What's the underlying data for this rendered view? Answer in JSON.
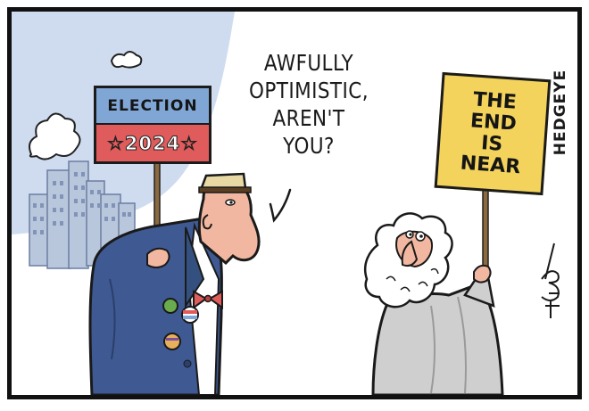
{
  "cartoon": {
    "speech_bubble": {
      "lines": [
        "AWFULLY",
        "OPTIMISTIC,",
        "AREN'T",
        "YOU?"
      ]
    },
    "election_sign": {
      "top_text": "ELECTION",
      "bottom_text": "☆2024☆"
    },
    "doom_sign": {
      "lines": [
        "THE",
        "END",
        "IS",
        "NEAR"
      ]
    },
    "publisher_credit": "HEDGEYE",
    "artist_signature": "Bob Rich",
    "colors": {
      "sky": "#cfdcf0",
      "buildings": "#b9c7dd",
      "suit": "#3f5a93",
      "sign_blue": "#7fa6d4",
      "sign_red": "#e05b5b",
      "sign_yellow": "#f3d35c",
      "skin": "#f1b7a0",
      "robe": "#cfcfcf"
    }
  }
}
